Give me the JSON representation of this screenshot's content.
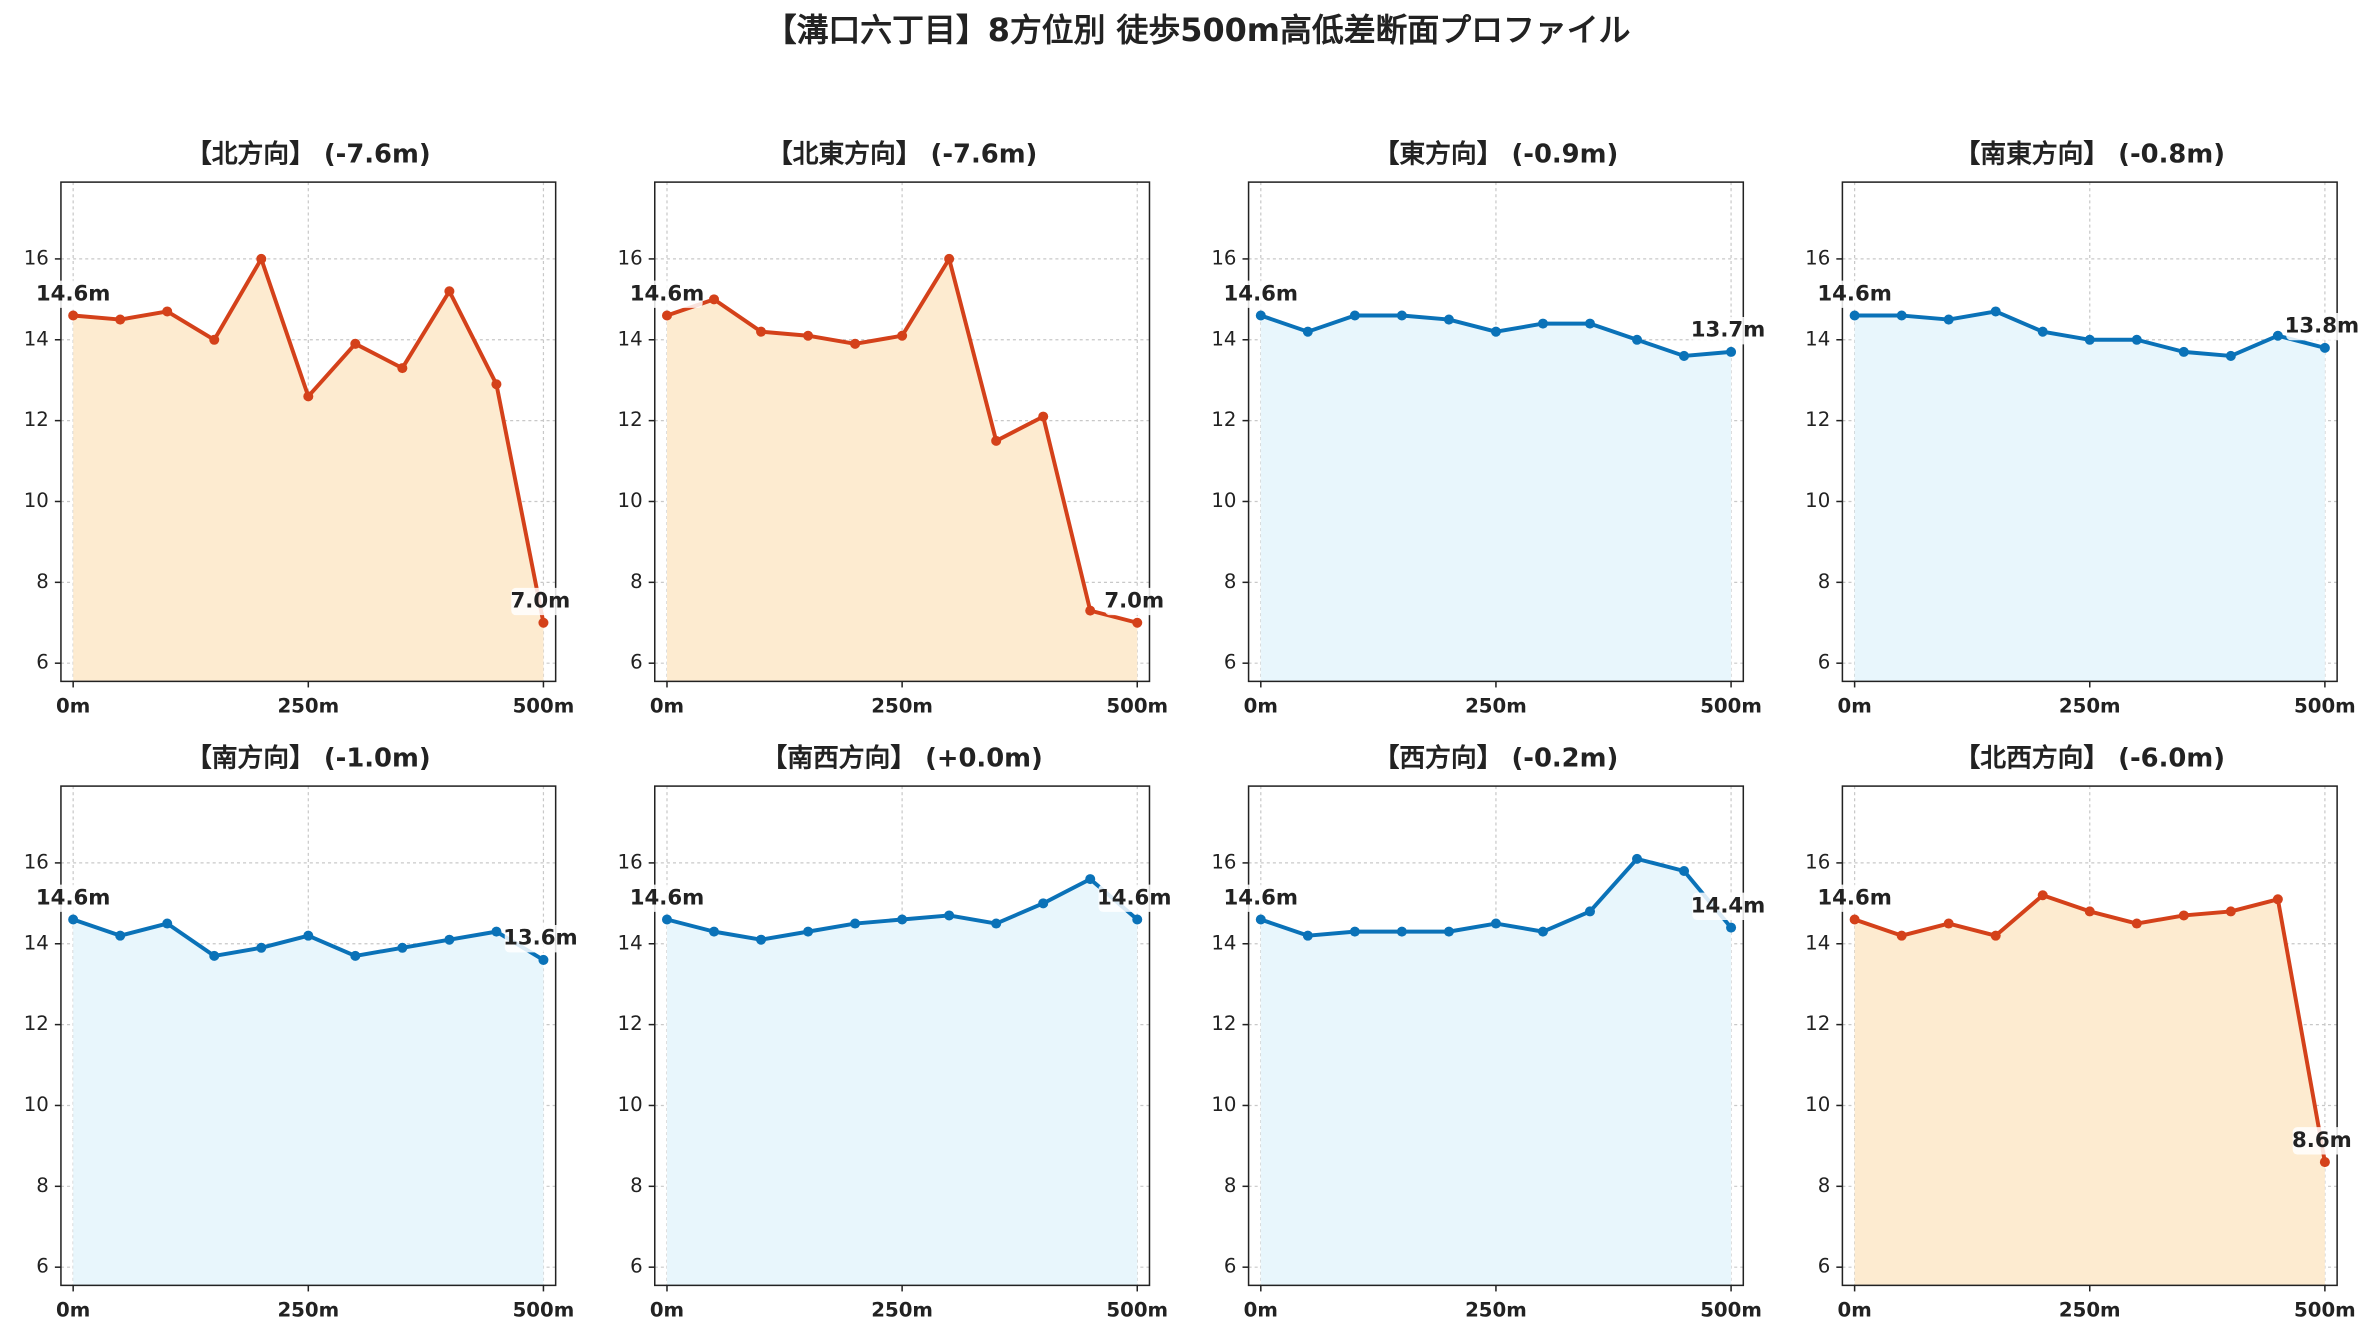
{
  "title": "【溝口六丁目】8方位別 徒歩500m高低差断面プロファイル",
  "chart_data": [
    {
      "type": "line",
      "title": "【北方向】 (-7.6m)",
      "color": "#d4411a",
      "fill_color": "#fdebd0",
      "x": [
        0,
        50,
        100,
        150,
        200,
        250,
        300,
        350,
        400,
        450,
        500
      ],
      "values": [
        14.6,
        14.5,
        14.7,
        14.0,
        16.0,
        12.6,
        13.9,
        13.3,
        15.2,
        12.9,
        7.0
      ],
      "value_labels": [
        "14.6m",
        null,
        null,
        null,
        null,
        null,
        null,
        null,
        null,
        null,
        "7.0m"
      ],
      "xlim": [
        -13,
        513
      ],
      "xticks": [
        {
          "value": 0,
          "label": "0m"
        },
        {
          "value": 250,
          "label": "250m"
        },
        {
          "value": 500,
          "label": "500m"
        }
      ],
      "ylim": [
        5.55,
        17.9
      ],
      "yticks": [
        6,
        8,
        10,
        12,
        14,
        16
      ],
      "grid": true
    },
    {
      "type": "line",
      "title": "【北東方向】 (-7.6m)",
      "color": "#d4411a",
      "fill_color": "#fdebd0",
      "x": [
        0,
        50,
        100,
        150,
        200,
        250,
        300,
        350,
        400,
        450,
        500
      ],
      "values": [
        14.6,
        15.0,
        14.2,
        14.1,
        13.9,
        14.1,
        16.0,
        11.5,
        12.1,
        7.3,
        7.0
      ],
      "value_labels": [
        "14.6m",
        null,
        null,
        null,
        null,
        null,
        null,
        null,
        null,
        null,
        "7.0m"
      ],
      "xlim": [
        -13,
        513
      ],
      "xticks": [
        {
          "value": 0,
          "label": "0m"
        },
        {
          "value": 250,
          "label": "250m"
        },
        {
          "value": 500,
          "label": "500m"
        }
      ],
      "ylim": [
        5.55,
        17.9
      ],
      "yticks": [
        6,
        8,
        10,
        12,
        14,
        16
      ],
      "grid": true
    },
    {
      "type": "line",
      "title": "【東方向】 (-0.9m)",
      "color": "#0a72b8",
      "fill_color": "#e8f6fc",
      "x": [
        0,
        50,
        100,
        150,
        200,
        250,
        300,
        350,
        400,
        450,
        500
      ],
      "values": [
        14.6,
        14.2,
        14.6,
        14.6,
        14.5,
        14.2,
        14.4,
        14.4,
        14.0,
        13.6,
        13.7
      ],
      "value_labels": [
        "14.6m",
        null,
        null,
        null,
        null,
        null,
        null,
        null,
        null,
        null,
        "13.7m"
      ],
      "xlim": [
        -13,
        513
      ],
      "xticks": [
        {
          "value": 0,
          "label": "0m"
        },
        {
          "value": 250,
          "label": "250m"
        },
        {
          "value": 500,
          "label": "500m"
        }
      ],
      "ylim": [
        5.55,
        17.9
      ],
      "yticks": [
        6,
        8,
        10,
        12,
        14,
        16
      ],
      "grid": true
    },
    {
      "type": "line",
      "title": "【南東方向】 (-0.8m)",
      "color": "#0a72b8",
      "fill_color": "#e8f6fc",
      "x": [
        0,
        50,
        100,
        150,
        200,
        250,
        300,
        350,
        400,
        450,
        500
      ],
      "values": [
        14.6,
        14.6,
        14.5,
        14.7,
        14.2,
        14.0,
        14.0,
        13.7,
        13.6,
        14.1,
        13.8
      ],
      "value_labels": [
        "14.6m",
        null,
        null,
        null,
        null,
        null,
        null,
        null,
        null,
        null,
        "13.8m"
      ],
      "xlim": [
        -13,
        513
      ],
      "xticks": [
        {
          "value": 0,
          "label": "0m"
        },
        {
          "value": 250,
          "label": "250m"
        },
        {
          "value": 500,
          "label": "500m"
        }
      ],
      "ylim": [
        5.55,
        17.9
      ],
      "yticks": [
        6,
        8,
        10,
        12,
        14,
        16
      ],
      "grid": true
    },
    {
      "type": "line",
      "title": "【南方向】 (-1.0m)",
      "color": "#0a72b8",
      "fill_color": "#e8f6fc",
      "x": [
        0,
        50,
        100,
        150,
        200,
        250,
        300,
        350,
        400,
        450,
        500
      ],
      "values": [
        14.6,
        14.2,
        14.5,
        13.7,
        13.9,
        14.2,
        13.7,
        13.9,
        14.1,
        14.3,
        13.6
      ],
      "value_labels": [
        "14.6m",
        null,
        null,
        null,
        null,
        null,
        null,
        null,
        null,
        null,
        "13.6m"
      ],
      "xlim": [
        -13,
        513
      ],
      "xticks": [
        {
          "value": 0,
          "label": "0m"
        },
        {
          "value": 250,
          "label": "250m"
        },
        {
          "value": 500,
          "label": "500m"
        }
      ],
      "ylim": [
        5.55,
        17.9
      ],
      "yticks": [
        6,
        8,
        10,
        12,
        14,
        16
      ],
      "grid": true
    },
    {
      "type": "line",
      "title": "【南西方向】 (+0.0m)",
      "color": "#0a72b8",
      "fill_color": "#e8f6fc",
      "x": [
        0,
        50,
        100,
        150,
        200,
        250,
        300,
        350,
        400,
        450,
        500
      ],
      "values": [
        14.6,
        14.3,
        14.1,
        14.3,
        14.5,
        14.6,
        14.7,
        14.5,
        15.0,
        15.6,
        14.6
      ],
      "value_labels": [
        "14.6m",
        null,
        null,
        null,
        null,
        null,
        null,
        null,
        null,
        null,
        "14.6m"
      ],
      "xlim": [
        -13,
        513
      ],
      "xticks": [
        {
          "value": 0,
          "label": "0m"
        },
        {
          "value": 250,
          "label": "250m"
        },
        {
          "value": 500,
          "label": "500m"
        }
      ],
      "ylim": [
        5.55,
        17.9
      ],
      "yticks": [
        6,
        8,
        10,
        12,
        14,
        16
      ],
      "grid": true
    },
    {
      "type": "line",
      "title": "【西方向】 (-0.2m)",
      "color": "#0a72b8",
      "fill_color": "#e8f6fc",
      "x": [
        0,
        50,
        100,
        150,
        200,
        250,
        300,
        350,
        400,
        450,
        500
      ],
      "values": [
        14.6,
        14.2,
        14.3,
        14.3,
        14.3,
        14.5,
        14.3,
        14.8,
        16.1,
        15.8,
        14.4
      ],
      "value_labels": [
        "14.6m",
        null,
        null,
        null,
        null,
        null,
        null,
        null,
        null,
        null,
        "14.4m"
      ],
      "xlim": [
        -13,
        513
      ],
      "xticks": [
        {
          "value": 0,
          "label": "0m"
        },
        {
          "value": 250,
          "label": "250m"
        },
        {
          "value": 500,
          "label": "500m"
        }
      ],
      "ylim": [
        5.55,
        17.9
      ],
      "yticks": [
        6,
        8,
        10,
        12,
        14,
        16
      ],
      "grid": true
    },
    {
      "type": "line",
      "title": "【北西方向】 (-6.0m)",
      "color": "#d4411a",
      "fill_color": "#fdebd0",
      "x": [
        0,
        50,
        100,
        150,
        200,
        250,
        300,
        350,
        400,
        450,
        500
      ],
      "values": [
        14.6,
        14.2,
        14.5,
        14.2,
        15.2,
        14.8,
        14.5,
        14.7,
        14.8,
        15.1,
        8.6
      ],
      "value_labels": [
        "14.6m",
        null,
        null,
        null,
        null,
        null,
        null,
        null,
        null,
        null,
        "8.6m"
      ],
      "xlim": [
        -13,
        513
      ],
      "xticks": [
        {
          "value": 0,
          "label": "0m"
        },
        {
          "value": 250,
          "label": "250m"
        },
        {
          "value": 500,
          "label": "500m"
        }
      ],
      "ylim": [
        5.55,
        17.9
      ],
      "yticks": [
        6,
        8,
        10,
        12,
        14,
        16
      ],
      "grid": true
    }
  ]
}
